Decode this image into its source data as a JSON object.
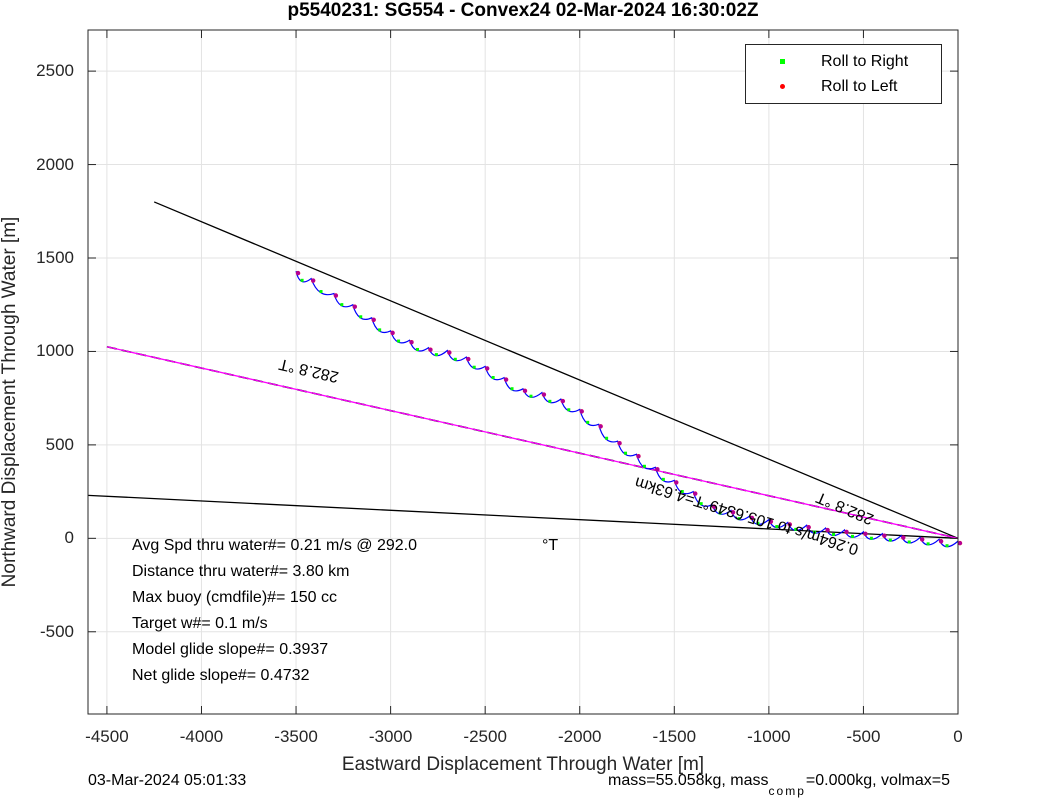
{
  "chart_data": {
    "type": "line",
    "title": "p5540231: SG554 - Convex24 02-Mar-2024 16:30:02Z",
    "xlabel": "Eastward Displacement Through Water [m]",
    "ylabel": "Northward Displacement Through Water [m]",
    "xlim": [
      -4600,
      0
    ],
    "ylim": [
      -940,
      2720
    ],
    "xticks": [
      "-4500",
      "-4000",
      "-3500",
      "-3000",
      "-2500",
      "-2000",
      "-1500",
      "-1000",
      "-500",
      "0"
    ],
    "yticks": [
      "2500",
      "2000",
      "1500",
      "1000",
      "500",
      "0",
      "-500"
    ],
    "grid": true,
    "legend": {
      "placement": "top-right",
      "entries": [
        {
          "label": "Roll to Right",
          "color": "#00ff00"
        },
        {
          "label": "Roll to Left",
          "color": "#ff0000"
        }
      ]
    },
    "lines": [
      {
        "style": "solid",
        "color": "#000000",
        "points": [
          [
            -4250,
            1800
          ],
          [
            0,
            0
          ]
        ]
      },
      {
        "style": "solid",
        "color": "#000000",
        "points": [
          [
            -4600,
            230
          ],
          [
            0,
            0
          ]
        ]
      },
      {
        "style": "dashed",
        "color": "#000000",
        "points": [
          [
            -4500,
            1025
          ],
          [
            0,
            0
          ]
        ]
      },
      {
        "style": "solid",
        "color": "#ff00ff",
        "points": [
          [
            -4500,
            1025
          ],
          [
            0,
            0
          ]
        ]
      }
    ],
    "track": {
      "color": "#0000ff",
      "points": [
        [
          -3500,
          1430
        ],
        [
          -3420,
          1390
        ],
        [
          -3300,
          1310
        ],
        [
          -3200,
          1250
        ],
        [
          -3100,
          1180
        ],
        [
          -3000,
          1110
        ],
        [
          -2900,
          1060
        ],
        [
          -2800,
          1020
        ],
        [
          -2700,
          1005
        ],
        [
          -2600,
          970
        ],
        [
          -2500,
          920
        ],
        [
          -2400,
          860
        ],
        [
          -2300,
          800
        ],
        [
          -2200,
          780
        ],
        [
          -2100,
          745
        ],
        [
          -2000,
          690
        ],
        [
          -1900,
          610
        ],
        [
          -1800,
          520
        ],
        [
          -1700,
          450
        ],
        [
          -1600,
          380
        ],
        [
          -1500,
          310
        ],
        [
          -1400,
          250
        ],
        [
          -1300,
          180
        ],
        [
          -1200,
          150
        ],
        [
          -1100,
          120
        ],
        [
          -1000,
          100
        ],
        [
          -900,
          85
        ],
        [
          -800,
          70
        ],
        [
          -700,
          55
        ],
        [
          -600,
          45
        ],
        [
          -500,
          35
        ],
        [
          -400,
          25
        ],
        [
          -300,
          15
        ],
        [
          -200,
          5
        ],
        [
          -100,
          -5
        ],
        [
          0,
          -15
        ]
      ]
    },
    "annotations": {
      "lines": [
        "Avg Spd thru water#=  0.21 m/s @ 292.0",
        "Distance thru water#=  3.80 km",
        "Max buoy (cmdfile)#= 150 cc",
        "Target w#= 0.1 m/s",
        "Model glide slope#= 0.3937",
        "Net glide slope#= 0.4732"
      ],
      "deg_unit": "°T",
      "heading_upper": "282.8 °T",
      "heading_mid": "282.8 °T",
      "current_text": "0.264m/s to 105.6349°T=4.63km"
    },
    "footer_left": "03-Mar-2024 05:01:33",
    "footer_right": "mass=55.058kg, mass",
    "footer_sub": "comp",
    "footer_right2": "=0.000kg, volmax=5"
  }
}
